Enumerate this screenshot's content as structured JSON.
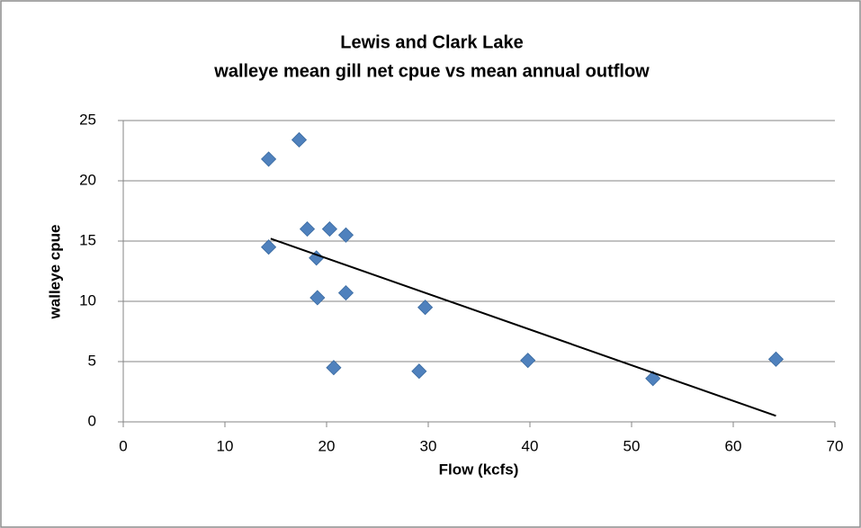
{
  "chart_data": {
    "type": "scatter",
    "title": [
      "Lewis and Clark Lake",
      "walleye mean gill net cpue vs mean annual outflow"
    ],
    "x_label": "Flow (kcfs)",
    "y_label": "walleye cpue",
    "series": [
      {
        "color": "#4f81bd",
        "x": [
          14.3,
          17.3,
          18.1,
          20.3,
          21.9,
          14.3,
          19.0,
          19.1,
          21.9,
          29.7,
          20.7,
          29.1,
          39.8,
          52.1,
          64.2
        ],
        "values": [
          21.8,
          23.4,
          16.0,
          16.0,
          15.5,
          14.5,
          13.6,
          10.3,
          10.7,
          9.5,
          4.5,
          4.2,
          5.1,
          3.6,
          5.2
        ]
      }
    ],
    "trendline": {
      "color": "#000000",
      "x": [
        14.5,
        64.2
      ],
      "values": [
        15.2,
        0.5
      ]
    },
    "xlim": [
      0,
      70
    ],
    "xticks": [
      0,
      10,
      20,
      30,
      40,
      50,
      60,
      70
    ],
    "ylim": [
      0,
      25
    ],
    "yticks": [
      0,
      5,
      10,
      15,
      20,
      25
    ],
    "grid": true
  }
}
